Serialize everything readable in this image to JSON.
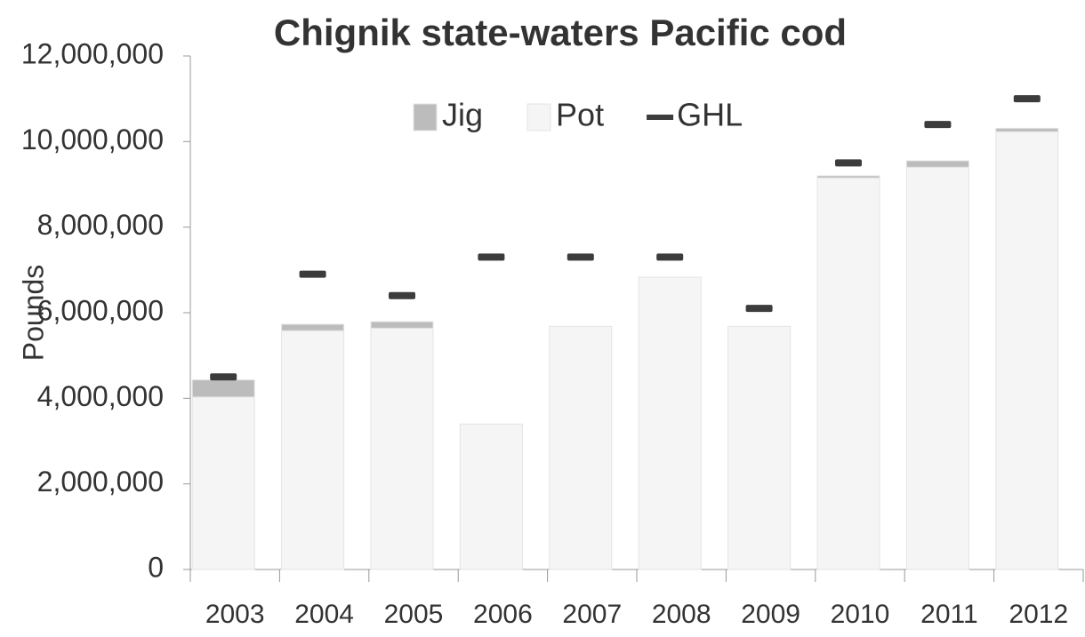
{
  "chart_data": {
    "type": "stacked_bar_with_markers",
    "title": "Chignik state-waters Pacific cod",
    "y_label": "Pounds",
    "categories": [
      "2003",
      "2004",
      "2005",
      "2006",
      "2007",
      "2008",
      "2009",
      "2010",
      "2011",
      "2012"
    ],
    "series": [
      {
        "name": "Jig",
        "color": "#bcbcbc",
        "kind": "bar",
        "values": [
          400000,
          150000,
          150000,
          0,
          0,
          0,
          0,
          50000,
          150000,
          80000
        ]
      },
      {
        "name": "Pot",
        "color": "#f5f5f5",
        "kind": "bar",
        "values": [
          4030000,
          5580000,
          5640000,
          3400000,
          5680000,
          6830000,
          5680000,
          9150000,
          9400000,
          10230000
        ]
      },
      {
        "name": "GHL",
        "color": "#3c3c3c",
        "kind": "dash",
        "values": [
          4500000,
          6900000,
          6400000,
          7300000,
          7300000,
          7300000,
          6100000,
          9500000,
          10400000,
          11000000
        ]
      }
    ],
    "ylim": [
      0,
      12000000
    ],
    "yticks": [
      0,
      {
        "value": 2000000,
        "label": "2,000,000"
      },
      {
        "value": 4000000,
        "label": "4,000,000"
      },
      {
        "value": 6000000,
        "label": "6,000,000"
      },
      {
        "value": 8000000,
        "label": "8,000,000"
      },
      {
        "value": 10000000,
        "label": "10,000,000"
      },
      {
        "value": 12000000,
        "label": "12,000,000"
      }
    ],
    "grid": false,
    "legend": "top"
  }
}
